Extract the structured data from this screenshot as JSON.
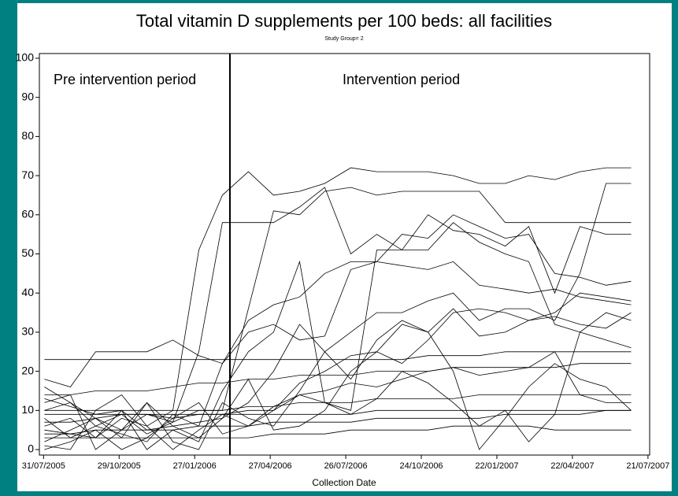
{
  "chart_data": {
    "type": "line",
    "title": "Total vitamin D supplements per 100 beds: all facilities",
    "subtitle": "Study Group= 2",
    "xlabel": "Collection Date",
    "annotations": [
      "Pre intervention period",
      "Intervention period"
    ],
    "intervention_date": "2006-03-10",
    "color": "#000000",
    "xlim": [
      "2005-07-26",
      "2007-07-23"
    ],
    "xticks": [
      {
        "value": "2005-07-31",
        "label": "31/07/2005"
      },
      {
        "value": "2005-10-29",
        "label": "29/10/2005"
      },
      {
        "value": "2006-01-27",
        "label": "27/01/2006"
      },
      {
        "value": "2006-04-27",
        "label": "27/04/2006"
      },
      {
        "value": "2006-07-26",
        "label": "26/07/2006"
      },
      {
        "value": "2006-10-24",
        "label": "24/10/2006"
      },
      {
        "value": "2007-01-22",
        "label": "22/01/2007"
      },
      {
        "value": "2007-04-22",
        "label": "22/04/2007"
      },
      {
        "value": "2007-07-21",
        "label": "21/07/2007"
      }
    ],
    "ylim": [
      -1.4,
      101.2
    ],
    "yticks": [
      0,
      10,
      20,
      30,
      40,
      50,
      60,
      70,
      80,
      90,
      100
    ],
    "x": [
      "2005-08-01",
      "2005-09-01",
      "2005-10-01",
      "2005-11-01",
      "2005-12-01",
      "2006-01-01",
      "2006-02-01",
      "2006-03-01",
      "2006-04-01",
      "2006-05-01",
      "2006-06-01",
      "2006-07-01",
      "2006-08-01",
      "2006-09-01",
      "2006-10-01",
      "2006-11-01",
      "2006-12-01",
      "2007-01-01",
      "2007-02-01",
      "2007-03-01",
      "2007-04-01",
      "2007-05-01",
      "2007-06-01",
      "2007-07-01"
    ],
    "series": [
      {
        "values": [
          5,
          4,
          3,
          8,
          6,
          10,
          51,
          65,
          71,
          65,
          66,
          68,
          72,
          71,
          71,
          71,
          70,
          68,
          68,
          70,
          69,
          71,
          72,
          72
        ]
      },
      {
        "values": [
          10,
          12,
          8,
          5,
          9,
          7,
          25,
          58,
          58,
          58,
          62,
          67,
          50,
          55,
          51,
          60,
          56,
          55,
          52,
          57,
          40,
          57,
          55,
          55
        ]
      },
      {
        "values": [
          8,
          3,
          6,
          9,
          4,
          7,
          10,
          10,
          36,
          61,
          60,
          66,
          67,
          65,
          66,
          66,
          66,
          66,
          58,
          58,
          58,
          58,
          58,
          58
        ]
      },
      {
        "values": [
          18,
          16,
          25,
          25,
          25,
          28,
          24,
          22,
          33,
          37,
          39,
          45,
          48,
          48,
          47,
          46,
          48,
          42,
          41,
          40,
          41,
          39,
          38,
          37
        ]
      },
      {
        "values": [
          13,
          11,
          9,
          10,
          5,
          6,
          7,
          8,
          12,
          20,
          32,
          25,
          18,
          28,
          33,
          30,
          36,
          29,
          30,
          33,
          35,
          40,
          39,
          38
        ]
      },
      {
        "values": [
          23,
          23,
          23,
          23,
          23,
          23,
          23,
          23,
          23,
          23,
          23,
          23,
          23,
          23,
          23,
          24,
          24,
          24,
          25,
          25,
          25,
          25,
          25,
          25
        ]
      },
      {
        "values": [
          14,
          14,
          15,
          15,
          15,
          16,
          17,
          17,
          18,
          18,
          19,
          19,
          19,
          20,
          20,
          20,
          21,
          21,
          21,
          21,
          21,
          22,
          22,
          22
        ]
      },
      {
        "values": [
          4,
          4,
          5,
          5,
          5,
          5,
          6,
          6,
          6,
          7,
          7,
          7,
          7,
          8,
          8,
          8,
          8,
          8,
          9,
          9,
          9,
          9,
          10,
          10
        ]
      },
      {
        "values": [
          10,
          10,
          10,
          10,
          10,
          10,
          10,
          10,
          11,
          11,
          12,
          12,
          12,
          13,
          13,
          13,
          13,
          14,
          14,
          14,
          14,
          14,
          14,
          14
        ]
      },
      {
        "values": [
          6,
          8,
          3,
          10,
          0,
          5,
          2,
          15,
          25,
          30,
          48,
          12,
          10,
          51,
          51,
          51,
          58,
          53,
          50,
          48,
          32,
          30,
          28,
          26
        ]
      },
      {
        "values": [
          2,
          5,
          8,
          3,
          12,
          2,
          0,
          12,
          8,
          6,
          15,
          25,
          30,
          35,
          35,
          38,
          40,
          33,
          36,
          36,
          33,
          45,
          68,
          68
        ]
      },
      {
        "values": [
          3,
          3,
          3,
          3,
          3,
          3,
          3,
          3,
          3,
          4,
          4,
          4,
          5,
          5,
          5,
          5,
          6,
          6,
          6,
          6,
          5,
          5,
          5,
          5
        ]
      },
      {
        "values": [
          12,
          14,
          0,
          5,
          12,
          6,
          3,
          8,
          18,
          5,
          6,
          10,
          20,
          25,
          32,
          30,
          20,
          0,
          8,
          16,
          22,
          18,
          16,
          10
        ]
      },
      {
        "values": [
          0,
          2,
          5,
          0,
          3,
          8,
          12,
          4,
          6,
          11,
          14,
          12,
          9,
          13,
          20,
          17,
          12,
          6,
          10,
          2,
          9,
          30,
          35,
          33
        ]
      },
      {
        "values": [
          16,
          12,
          6,
          4,
          2,
          9,
          6,
          22,
          30,
          32,
          28,
          29,
          46,
          48,
          55,
          54,
          60,
          57,
          54,
          55,
          45,
          44,
          42,
          43
        ]
      },
      {
        "values": [
          7,
          7,
          8,
          9,
          9,
          8,
          9,
          9,
          10,
          10,
          14,
          15,
          17,
          16,
          18,
          20,
          21,
          19,
          20,
          21,
          25,
          14,
          12,
          12
        ]
      },
      {
        "values": [
          1,
          0,
          10,
          14,
          6,
          0,
          5,
          9,
          6,
          10,
          17,
          20,
          24,
          25,
          22,
          28,
          35,
          36,
          35,
          33,
          34,
          32,
          31,
          35
        ]
      },
      {
        "values": [
          9,
          9,
          9,
          9,
          9,
          9,
          9,
          9,
          9,
          9,
          9,
          9,
          9,
          10,
          10,
          10,
          10,
          10,
          10,
          10,
          10,
          10,
          10,
          10
        ]
      }
    ]
  }
}
